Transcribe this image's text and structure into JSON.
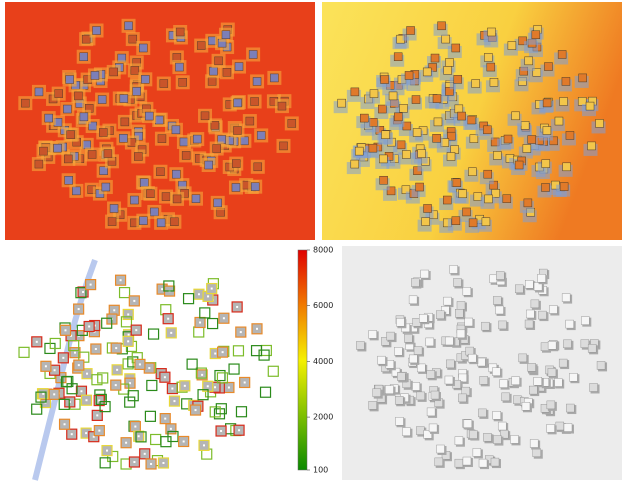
{
  "colorbar": {
    "range": [
      100,
      8000
    ],
    "ticks": [
      8000,
      6000,
      4000,
      2000,
      100
    ]
  }
}
